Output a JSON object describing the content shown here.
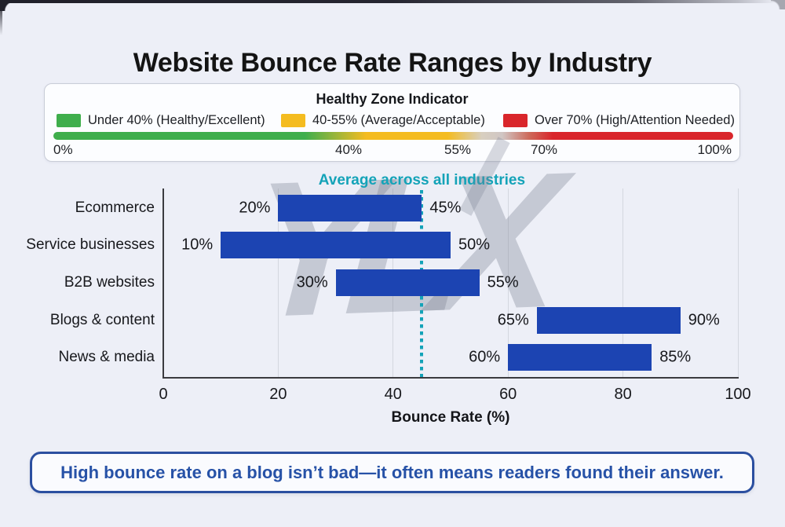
{
  "title": "Website Bounce Rate Ranges by Industry",
  "healthy_zone": {
    "title": "Healthy Zone Indicator",
    "legend": [
      {
        "label": "Under 40% (Healthy/Excellent)",
        "color": "#3fae4c"
      },
      {
        "label": "40-55% (Average/Acceptable)",
        "color": "#f4bc20"
      },
      {
        "label": "Over 70% (High/Attention Needed)",
        "color": "#d9262b"
      }
    ],
    "scale_labels": [
      "0%",
      "40%",
      "55%",
      "70%",
      "100%"
    ]
  },
  "watermark": "YLX",
  "chart_data": {
    "type": "bar",
    "orientation": "horizontal-range",
    "title": "Average across all industries",
    "categories": [
      "Ecommerce",
      "Service businesses",
      "B2B websites",
      "Blogs & content",
      "News & media"
    ],
    "series": [
      {
        "name": "Bounce rate range (min–max %)",
        "ranges": [
          [
            20,
            45
          ],
          [
            10,
            50
          ],
          [
            30,
            55
          ],
          [
            65,
            90
          ],
          [
            60,
            85
          ]
        ]
      }
    ],
    "average_line": 45,
    "xlabel": "Bounce Rate (%)",
    "xticks": [
      0,
      20,
      40,
      60,
      80,
      100
    ],
    "xlim": [
      0,
      100
    ],
    "grid": true,
    "bar_color": "#1c44b2",
    "average_color": "#14a3b8"
  },
  "callout": {
    "text": "High bounce rate on a blog isn’t bad—it often means readers found their answer."
  }
}
